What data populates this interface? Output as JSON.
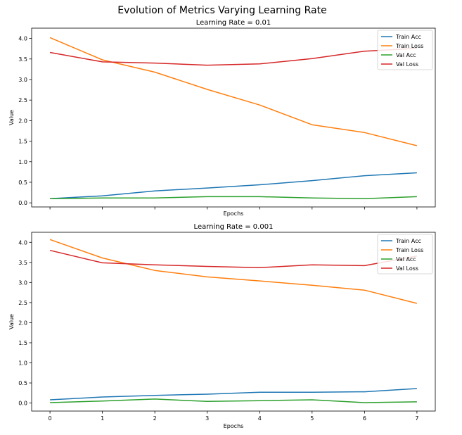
{
  "figure": {
    "suptitle": "Evolution of Metrics Varying Learning Rate"
  },
  "colors": {
    "train_acc": "#1f77b4",
    "train_loss": "#ff7f0e",
    "val_acc": "#2ca02c",
    "val_loss": "#d62728"
  },
  "chart_data": [
    {
      "type": "line",
      "title": "Learning Rate = 0.01",
      "xlabel": "Epochs",
      "ylabel": "Value",
      "x": [
        0,
        1,
        2,
        3,
        4,
        5,
        6,
        7
      ],
      "xlim": [
        -0.35,
        7.35
      ],
      "ylim": [
        -0.1,
        4.25
      ],
      "xticks": [],
      "xtick_labels": [],
      "yticks": [
        0.0,
        0.5,
        1.0,
        1.5,
        2.0,
        2.5,
        3.0,
        3.5,
        4.0
      ],
      "ytick_labels": [
        "0.0",
        "0.5",
        "1.0",
        "1.5",
        "2.0",
        "2.5",
        "3.0",
        "3.5",
        "4.0"
      ],
      "legend_position": "top-right",
      "grid": false,
      "series": [
        {
          "name": "Train Acc",
          "color_key": "train_acc",
          "values": [
            0.1,
            0.17,
            0.29,
            0.36,
            0.44,
            0.54,
            0.66,
            0.73
          ]
        },
        {
          "name": "Train Loss",
          "color_key": "train_loss",
          "values": [
            4.02,
            3.48,
            3.18,
            2.76,
            2.38,
            1.9,
            1.71,
            1.39
          ]
        },
        {
          "name": "Val Acc",
          "color_key": "val_acc",
          "values": [
            0.1,
            0.12,
            0.12,
            0.15,
            0.15,
            0.12,
            0.1,
            0.15
          ]
        },
        {
          "name": "Val Loss",
          "color_key": "val_loss",
          "values": [
            3.66,
            3.43,
            3.4,
            3.35,
            3.38,
            3.51,
            3.69,
            3.76
          ]
        }
      ]
    },
    {
      "type": "line",
      "title": "Learning Rate = 0.001",
      "xlabel": "Epochs",
      "ylabel": "Value",
      "x": [
        0,
        1,
        2,
        3,
        4,
        5,
        6,
        7
      ],
      "xlim": [
        -0.35,
        7.35
      ],
      "ylim": [
        -0.2,
        4.25
      ],
      "xticks": [
        0,
        1,
        2,
        3,
        4,
        5,
        6,
        7
      ],
      "xtick_labels": [
        "0",
        "1",
        "2",
        "3",
        "4",
        "5",
        "6",
        "7"
      ],
      "yticks": [
        0.0,
        0.5,
        1.0,
        1.5,
        2.0,
        2.5,
        3.0,
        3.5,
        4.0
      ],
      "ytick_labels": [
        "0.0",
        "0.5",
        "1.0",
        "1.5",
        "2.0",
        "2.5",
        "3.0",
        "3.5",
        "4.0"
      ],
      "legend_position": "top-right",
      "grid": false,
      "series": [
        {
          "name": "Train Acc",
          "color_key": "train_acc",
          "values": [
            0.08,
            0.15,
            0.19,
            0.22,
            0.27,
            0.27,
            0.28,
            0.36
          ]
        },
        {
          "name": "Train Loss",
          "color_key": "train_loss",
          "values": [
            4.07,
            3.61,
            3.3,
            3.14,
            3.04,
            2.93,
            2.81,
            2.48
          ]
        },
        {
          "name": "Val Acc",
          "color_key": "val_acc",
          "values": [
            0.01,
            0.05,
            0.1,
            0.04,
            0.06,
            0.08,
            0.01,
            0.03
          ]
        },
        {
          "name": "Val Loss",
          "color_key": "val_loss",
          "values": [
            3.8,
            3.49,
            3.44,
            3.4,
            3.37,
            3.44,
            3.42,
            3.66
          ]
        }
      ]
    }
  ]
}
